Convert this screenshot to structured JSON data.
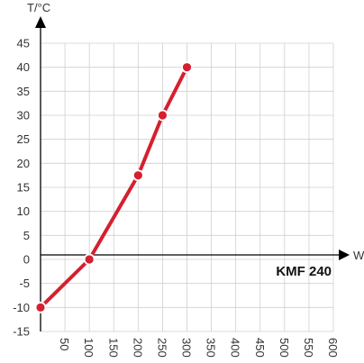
{
  "chart_data": {
    "type": "line",
    "title": "",
    "xlabel": "W",
    "ylabel": "T/°C",
    "xlim": [
      0,
      600
    ],
    "ylim": [
      -15,
      45
    ],
    "x_ticks": [
      50,
      100,
      150,
      200,
      250,
      300,
      350,
      400,
      450,
      500,
      550,
      600
    ],
    "y_ticks": [
      45,
      40,
      35,
      30,
      25,
      20,
      15,
      10,
      5,
      0,
      -5,
      -10,
      -15
    ],
    "grid": true,
    "annotation": "KMF 240",
    "line_color": "#d42030",
    "series": [
      {
        "x": [
          0,
          100,
          200,
          250,
          300
        ],
        "y": [
          -10,
          0,
          17.5,
          30,
          40
        ]
      }
    ]
  }
}
